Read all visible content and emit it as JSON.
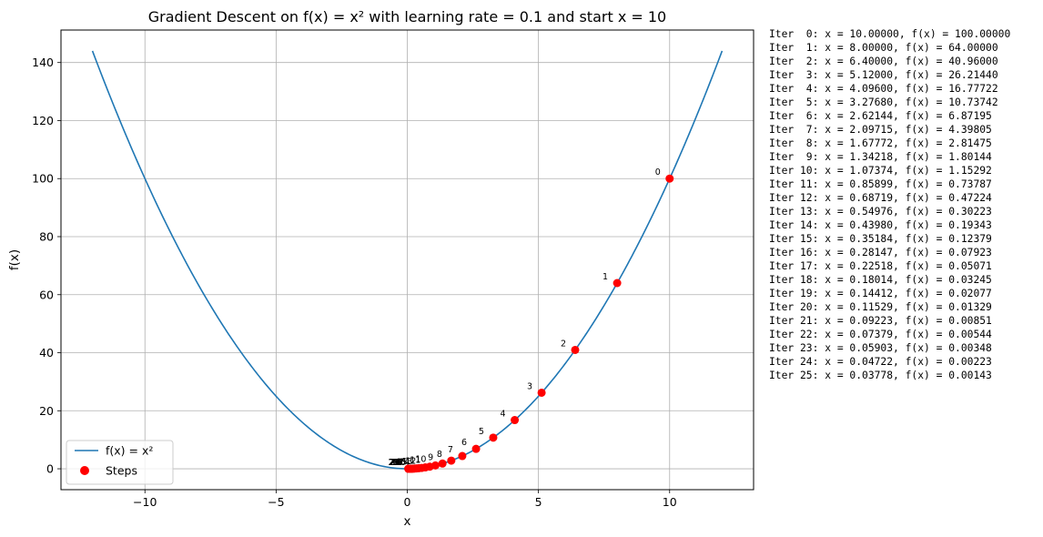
{
  "chart_data": {
    "type": "line",
    "title": "Gradient Descent on f(x) = x² with learning rate = 0.1 and start x = 10",
    "xlabel": "x",
    "ylabel": "f(x)",
    "xlim": [
      -13.2,
      13.2
    ],
    "ylim": [
      -7.2,
      151.2
    ],
    "xticks": [
      -10,
      -5,
      0,
      5,
      10
    ],
    "yticks": [
      0,
      20,
      40,
      60,
      80,
      100,
      120,
      140
    ],
    "grid": true,
    "legend_position": "lower-left",
    "curve": {
      "name": "f(x) = x²",
      "x_range": [
        -12,
        12
      ],
      "color": "#1f77b4"
    },
    "steps": {
      "name": "Steps",
      "color": "#ff0000",
      "x": [
        10.0,
        8.0,
        6.4,
        5.12,
        4.096,
        3.2768,
        2.62144,
        2.09715,
        1.67772,
        1.34218,
        1.07374,
        0.85899,
        0.68719,
        0.54976,
        0.4398,
        0.35184,
        0.28147,
        0.22518,
        0.18014,
        0.14412,
        0.11529,
        0.09223,
        0.07379,
        0.05903,
        0.04722,
        0.03778
      ],
      "y": [
        100.0,
        64.0,
        40.96,
        26.2144,
        16.77722,
        10.73742,
        6.87195,
        4.39805,
        2.81475,
        1.80144,
        1.15292,
        0.73787,
        0.47224,
        0.30223,
        0.19343,
        0.12379,
        0.07923,
        0.05071,
        0.03245,
        0.02077,
        0.01329,
        0.00851,
        0.00544,
        0.00348,
        0.00223,
        0.00143
      ],
      "labels": [
        "0",
        "1",
        "2",
        "3",
        "4",
        "5",
        "6",
        "7",
        "8",
        "9",
        "10",
        "11",
        "12",
        "13",
        "14",
        "15",
        "16",
        "17",
        "18",
        "19",
        "20",
        "21",
        "22",
        "23",
        "24",
        "25"
      ]
    }
  },
  "log_lines": [
    "Iter  0: x = 10.00000, f(x) = 100.00000",
    "Iter  1: x = 8.00000, f(x) = 64.00000",
    "Iter  2: x = 6.40000, f(x) = 40.96000",
    "Iter  3: x = 5.12000, f(x) = 26.21440",
    "Iter  4: x = 4.09600, f(x) = 16.77722",
    "Iter  5: x = 3.27680, f(x) = 10.73742",
    "Iter  6: x = 2.62144, f(x) = 6.87195",
    "Iter  7: x = 2.09715, f(x) = 4.39805",
    "Iter  8: x = 1.67772, f(x) = 2.81475",
    "Iter  9: x = 1.34218, f(x) = 1.80144",
    "Iter 10: x = 1.07374, f(x) = 1.15292",
    "Iter 11: x = 0.85899, f(x) = 0.73787",
    "Iter 12: x = 0.68719, f(x) = 0.47224",
    "Iter 13: x = 0.54976, f(x) = 0.30223",
    "Iter 14: x = 0.43980, f(x) = 0.19343",
    "Iter 15: x = 0.35184, f(x) = 0.12379",
    "Iter 16: x = 0.28147, f(x) = 0.07923",
    "Iter 17: x = 0.22518, f(x) = 0.05071",
    "Iter 18: x = 0.18014, f(x) = 0.03245",
    "Iter 19: x = 0.14412, f(x) = 0.02077",
    "Iter 20: x = 0.11529, f(x) = 0.01329",
    "Iter 21: x = 0.09223, f(x) = 0.00851",
    "Iter 22: x = 0.07379, f(x) = 0.00544",
    "Iter 23: x = 0.05903, f(x) = 0.00348",
    "Iter 24: x = 0.04722, f(x) = 0.00223",
    "Iter 25: x = 0.03778, f(x) = 0.00143"
  ]
}
